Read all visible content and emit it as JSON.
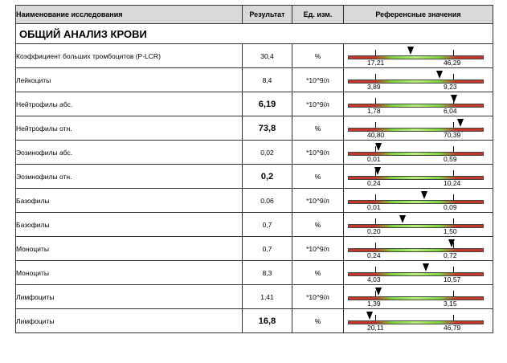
{
  "header": {
    "name": "Наименование исследования",
    "result": "Результат",
    "unit": "Ед. изм.",
    "ref": "Референсные значения"
  },
  "section_title": "ОБЩИЙ АНАЛИЗ КРОВИ",
  "rows": [
    {
      "name": "Коэффициент больших тромбоцитов (P-LCR)",
      "result": "30,4",
      "unit": "%",
      "low": "17,21",
      "high": "46,29",
      "marker_pos": 0.47,
      "bold": false
    },
    {
      "name": "Лейкоциты",
      "result": "8,4",
      "unit": "*10^9/л",
      "low": "3,89",
      "high": "9,23",
      "marker_pos": 0.68,
      "bold": false
    },
    {
      "name": "Нейтрофилы абс.",
      "result": "6,19",
      "unit": "*10^9/л",
      "low": "1,78",
      "high": "6,04",
      "marker_pos": 0.79,
      "bold": true
    },
    {
      "name": "Нейтрофилы отн.",
      "result": "73,8",
      "unit": "%",
      "low": "40,80",
      "high": "70,39",
      "marker_pos": 0.84,
      "bold": true
    },
    {
      "name": "Эозинофилы абс.",
      "result": "0,02",
      "unit": "*10^9/л",
      "low": "0,01",
      "high": "0,59",
      "marker_pos": 0.23,
      "bold": false
    },
    {
      "name": "Эозинофилы отн.",
      "result": "0,2",
      "unit": "%",
      "low": "0,24",
      "high": "10,24",
      "marker_pos": 0.22,
      "bold": true
    },
    {
      "name": "Базофилы",
      "result": "0,06",
      "unit": "*10^9/л",
      "low": "0,01",
      "high": "0,09",
      "marker_pos": 0.57,
      "bold": false
    },
    {
      "name": "Базофилы",
      "result": "0,7",
      "unit": "%",
      "low": "0,20",
      "high": "1,50",
      "marker_pos": 0.41,
      "bold": false
    },
    {
      "name": "Моноциты",
      "result": "0,7",
      "unit": "*10^9/л",
      "low": "0,24",
      "high": "0,72",
      "marker_pos": 0.77,
      "bold": false
    },
    {
      "name": "Моноциты",
      "result": "8,3",
      "unit": "%",
      "low": "4,03",
      "high": "10,57",
      "marker_pos": 0.58,
      "bold": false
    },
    {
      "name": "Лимфоциты",
      "result": "1,41",
      "unit": "*10^9/л",
      "low": "1,39",
      "high": "3,15",
      "marker_pos": 0.23,
      "bold": false
    },
    {
      "name": "Лимфоциты",
      "result": "16,8",
      "unit": "%",
      "low": "20,11",
      "high": "46,79",
      "marker_pos": 0.16,
      "bold": true
    }
  ],
  "colors": {
    "low_high": "#c0392b",
    "normal": "#7cd23f",
    "header_bg": "#d9d9d9"
  }
}
